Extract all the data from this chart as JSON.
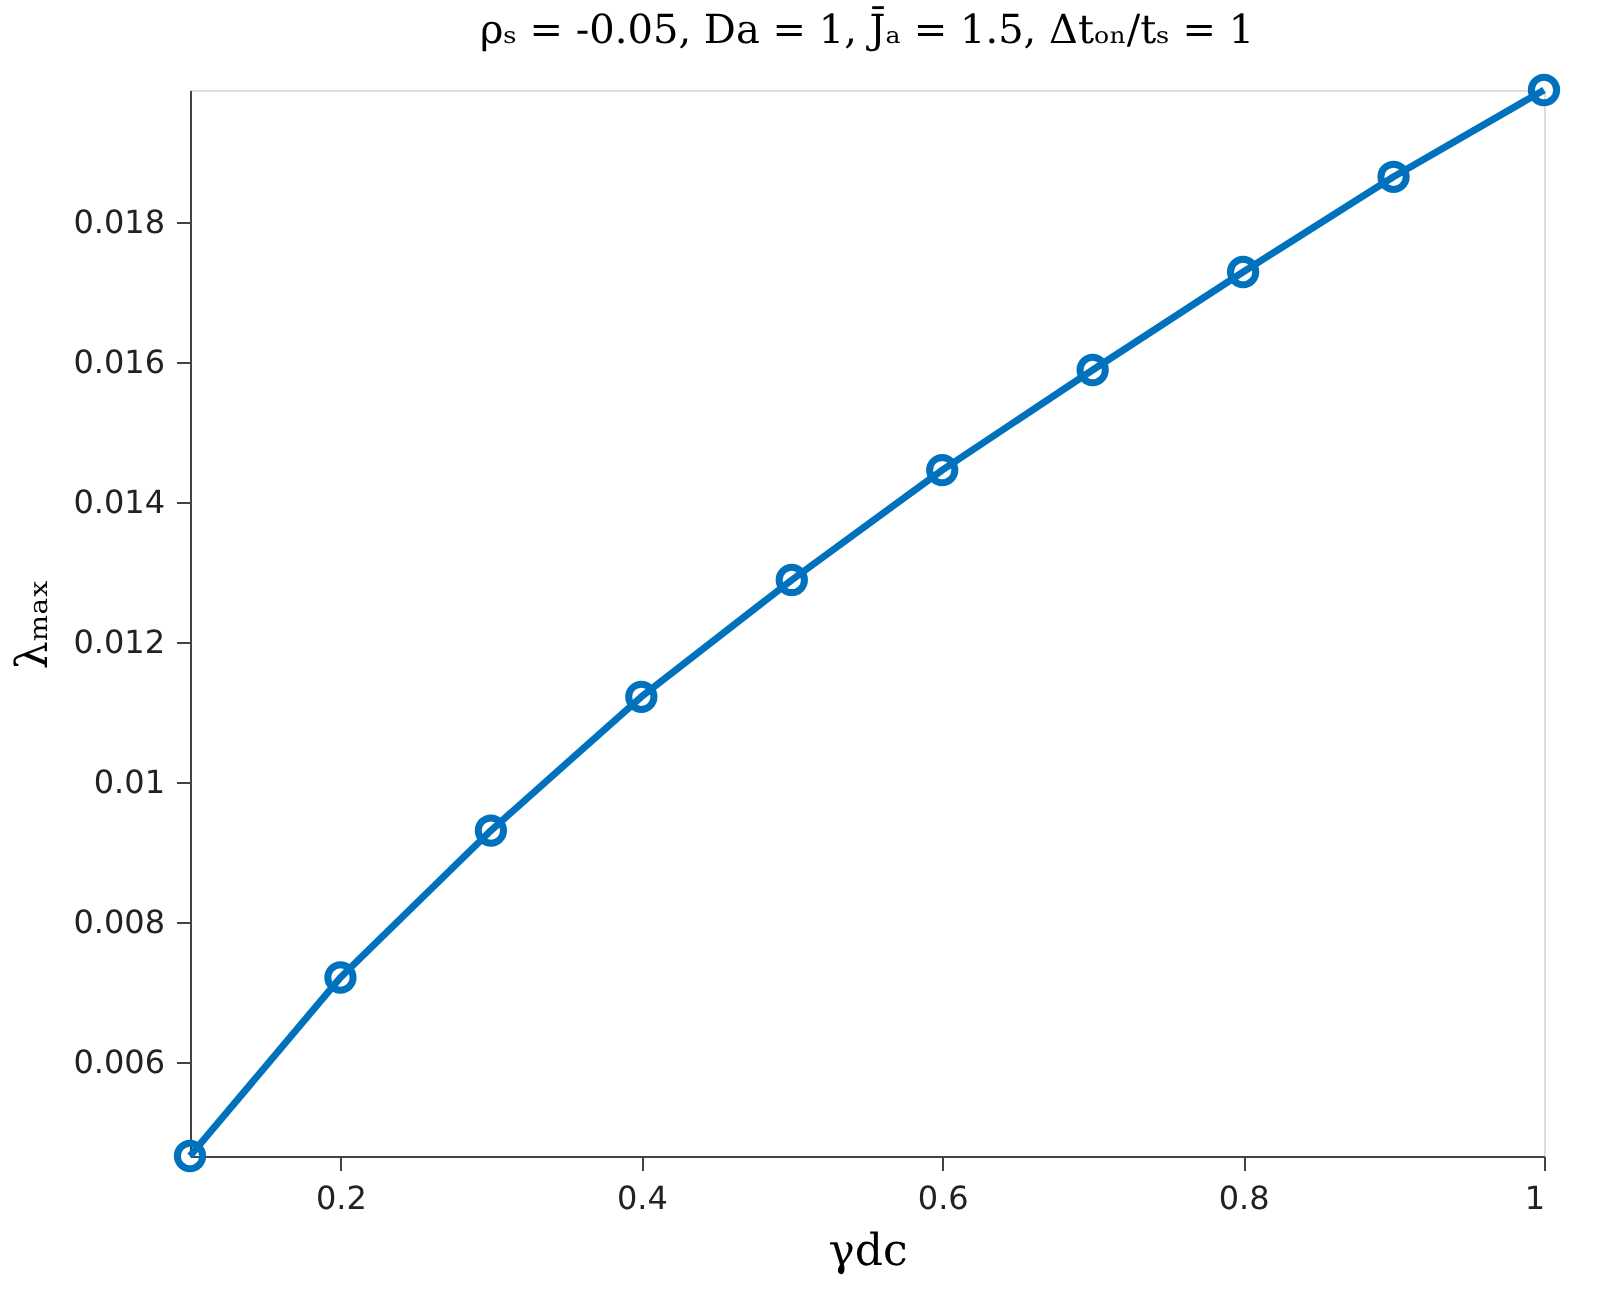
{
  "chart_data": {
    "type": "line",
    "title": "ρₛ = -0.05, Da = 1, J̄ₐ = 1.5, Δtₒₙ/tₛ = 1",
    "xlabel": "γdc",
    "ylabel": "λₘₐₓ",
    "x": [
      0.1,
      0.2,
      0.3,
      0.4,
      0.5,
      0.6,
      0.7,
      0.8,
      0.9,
      1.0
    ],
    "series": [
      {
        "color": "#0072bd",
        "values": [
          0.00465,
          0.0072,
          0.0093,
          0.01121,
          0.01288,
          0.01445,
          0.01588,
          0.01728,
          0.01864,
          0.01988
        ]
      }
    ],
    "xlim": [
      0.1,
      1
    ],
    "xticks": [
      0.2,
      0.4,
      0.6,
      0.8,
      1
    ],
    "ylim": [
      0.00465,
      0.01988
    ],
    "yticks": [
      0.006,
      0.008,
      0.01,
      0.012,
      0.014,
      0.016,
      0.018
    ],
    "grid": false,
    "legend": false,
    "marker": "circle",
    "line_style": "solid"
  }
}
